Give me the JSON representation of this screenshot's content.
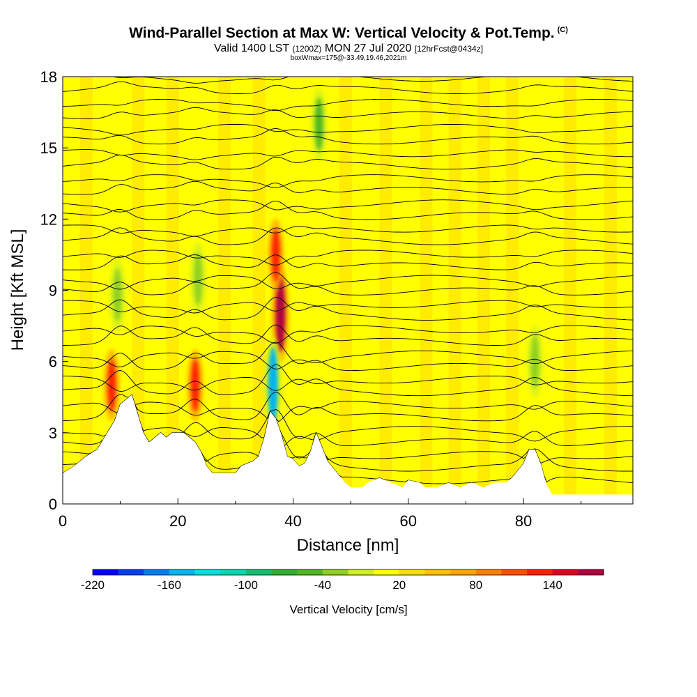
{
  "title": {
    "main": "Wind-Parallel Section at Max W: Vertical Velocity & Pot.Temp.",
    "copyright": "(C)",
    "valid_prefix": "Valid 1400 LST",
    "valid_utc": "(1200Z)",
    "valid_date": "MON 27 Jul 2020",
    "forecast": "[12hrFcst@0434z]",
    "box_info": "boxWmax=175@-33.49,19.46,2021m"
  },
  "chart_data": {
    "type": "heatmap",
    "title": "Wind-Parallel Section at Max W: Vertical Velocity & Pot.Temp.",
    "xlabel": "Distance [nm]",
    "ylabel": "Height [Kft MSL]",
    "xlim": [
      0,
      99
    ],
    "ylim": [
      0,
      18
    ],
    "x_ticks": [
      "0",
      "20",
      "40",
      "60",
      "80"
    ],
    "x_tick_values": [
      0,
      20,
      40,
      60,
      80
    ],
    "y_ticks": [
      "0",
      "3",
      "6",
      "9",
      "12",
      "15",
      "18"
    ],
    "y_tick_values": [
      0,
      3,
      6,
      9,
      12,
      15,
      18
    ],
    "colorbar": {
      "label": "Vertical Velocity [cm/s]",
      "tick_labels": [
        "-220",
        "-160",
        "-100",
        "-40",
        "20",
        "80",
        "140"
      ],
      "tick_values": [
        -220,
        -160,
        -100,
        -40,
        20,
        80,
        140
      ],
      "levels": [
        -220,
        -200,
        -180,
        -160,
        -140,
        -120,
        -100,
        -80,
        -60,
        -40,
        -20,
        0,
        20,
        40,
        60,
        80,
        100,
        120,
        140,
        160
      ],
      "colors": [
        "#0000ff",
        "#0040f0",
        "#0080f0",
        "#00b4f0",
        "#00e0e0",
        "#00d8b0",
        "#10c070",
        "#30b030",
        "#50b820",
        "#90d020",
        "#d0f020",
        "#ffff00",
        "#ffdc00",
        "#ffc000",
        "#ffa500",
        "#ff8000",
        "#ff5000",
        "#ff2000",
        "#e00020",
        "#b00040"
      ]
    },
    "terrain_kft": [
      [
        0,
        1.3
      ],
      [
        2,
        1.6
      ],
      [
        4,
        2.0
      ],
      [
        6,
        2.3
      ],
      [
        7,
        2.7
      ],
      [
        8,
        3.1
      ],
      [
        9,
        3.5
      ],
      [
        10,
        4.2
      ],
      [
        12,
        4.6
      ],
      [
        13,
        3.8
      ],
      [
        14,
        3.0
      ],
      [
        15,
        2.6
      ],
      [
        16,
        2.8
      ],
      [
        17,
        3.0
      ],
      [
        18,
        2.8
      ],
      [
        19,
        3.0
      ],
      [
        21,
        3.0
      ],
      [
        23,
        2.6
      ],
      [
        24,
        2.2
      ],
      [
        25,
        1.6
      ],
      [
        26,
        1.3
      ],
      [
        28,
        1.3
      ],
      [
        30,
        1.3
      ],
      [
        31,
        1.6
      ],
      [
        33,
        1.8
      ],
      [
        34,
        2.0
      ],
      [
        35,
        2.8
      ],
      [
        36,
        3.9
      ],
      [
        37,
        3.6
      ],
      [
        38,
        2.9
      ],
      [
        39,
        2.0
      ],
      [
        40,
        1.9
      ],
      [
        41,
        1.6
      ],
      [
        42,
        1.7
      ],
      [
        43,
        2.2
      ],
      [
        44,
        3.0
      ],
      [
        45,
        2.4
      ],
      [
        46,
        1.8
      ],
      [
        47,
        1.5
      ],
      [
        48,
        1.2
      ],
      [
        49,
        0.9
      ],
      [
        50,
        0.7
      ],
      [
        52,
        0.7
      ],
      [
        53,
        0.9
      ],
      [
        55,
        1.1
      ],
      [
        57,
        0.9
      ],
      [
        59,
        0.7
      ],
      [
        60,
        1.0
      ],
      [
        62,
        0.9
      ],
      [
        63,
        0.7
      ],
      [
        65,
        0.7
      ],
      [
        67,
        0.9
      ],
      [
        69,
        0.7
      ],
      [
        71,
        0.9
      ],
      [
        73,
        0.7
      ],
      [
        75,
        0.9
      ],
      [
        77,
        0.9
      ],
      [
        78,
        1.1
      ],
      [
        80,
        1.7
      ],
      [
        81,
        2.3
      ],
      [
        82,
        2.3
      ],
      [
        83,
        1.7
      ],
      [
        84,
        0.8
      ],
      [
        85,
        0.4
      ],
      [
        99,
        0.4
      ]
    ],
    "vertical_velocity_features": [
      {
        "x": 8.5,
        "z": 5.0,
        "w": 120
      },
      {
        "x": 23.0,
        "z": 5.0,
        "w": 120
      },
      {
        "x": 37.8,
        "z": 8.0,
        "w": 175
      },
      {
        "x": 37.0,
        "z": 10.5,
        "w": 120
      },
      {
        "x": 36.5,
        "z": 5.0,
        "w": -160
      },
      {
        "x": 44.5,
        "z": 16.0,
        "w": -60
      },
      {
        "x": 9.5,
        "z": 8.8,
        "w": -40
      },
      {
        "x": 23.5,
        "z": 9.5,
        "w": -40
      },
      {
        "x": 82.0,
        "z": 6.0,
        "w": -40
      }
    ],
    "theta_isentropes": "potential temperature contours (black lines), approx. every 0.6 kft, perturbed over terrain peaks near 10, 23, 37 and 82 nm"
  },
  "colors": {
    "background": "#ffff00",
    "plot_bg": "#ffff00",
    "terrain": "#ffffff",
    "contour": "#000000"
  }
}
